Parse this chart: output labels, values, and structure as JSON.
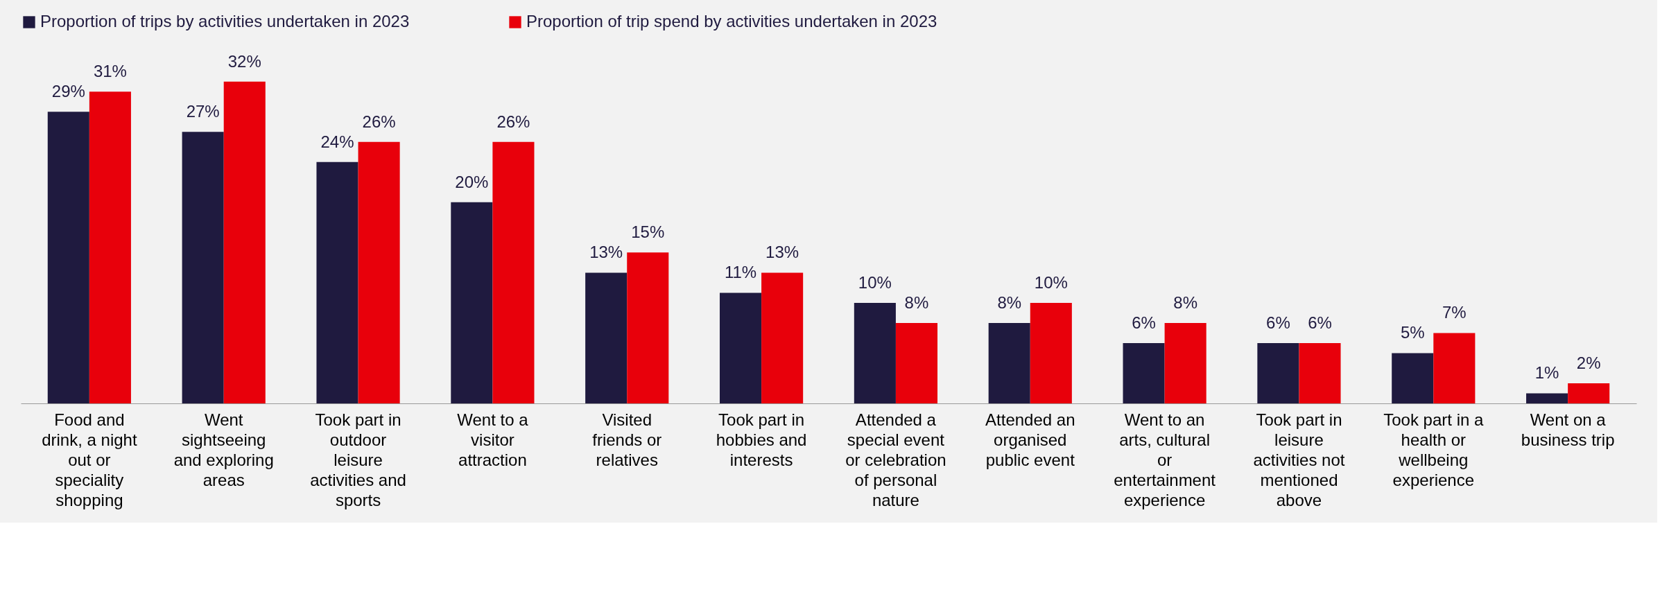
{
  "chart_data": {
    "type": "bar",
    "categories": [
      "Food and drink, a night out or speciality shopping",
      "Went sightseeing and exploring areas",
      "Took part in outdoor leisure activities and sports",
      "Went to a visitor attraction",
      "Visited friends or relatives",
      "Took part in hobbies and interests",
      "Attended a special event or celebration of personal nature",
      "Attended an organised public event",
      "Went to an arts, cultural or entertainment experience",
      "Took part in leisure activities not mentioned above",
      "Took part in a health or wellbeing experience",
      "Went on a business trip"
    ],
    "series": [
      {
        "name": "Proportion of trips by activities undertaken in 2023",
        "color": "#1f1a3f",
        "values": [
          29,
          27,
          24,
          20,
          13,
          11,
          10,
          8,
          6,
          6,
          5,
          1
        ],
        "value_labels": [
          "29%",
          "27%",
          "24%",
          "20%",
          "13%",
          "11%",
          "10%",
          "8%",
          "6%",
          "6%",
          "5%",
          "1%"
        ]
      },
      {
        "name": "Proportion of trip spend by activities undertaken in 2023",
        "color": "#e8000b",
        "values": [
          31,
          32,
          26,
          26,
          15,
          13,
          8,
          10,
          8,
          6,
          7,
          2
        ],
        "value_labels": [
          "31%",
          "32%",
          "26%",
          "26%",
          "15%",
          "13%",
          "8%",
          "10%",
          "8%",
          "6%",
          "7%",
          "2%"
        ]
      }
    ],
    "legend": "top",
    "grid": false
  }
}
